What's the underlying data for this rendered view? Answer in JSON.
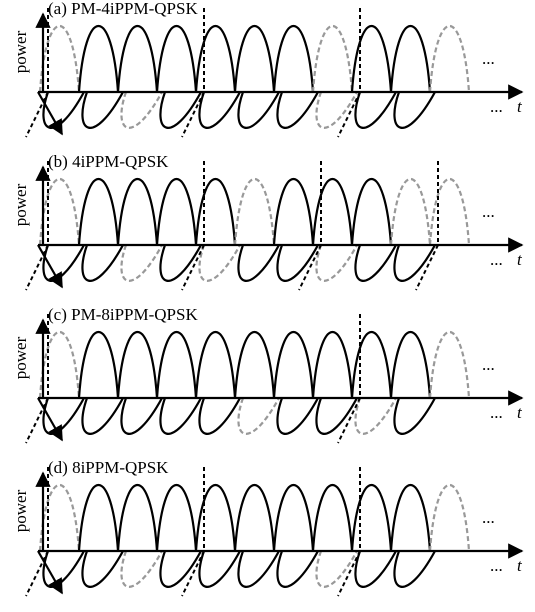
{
  "panels": [
    {
      "title": "(a) PM-4iPPM-QPSK",
      "y_label": "power",
      "x_label": "t",
      "ellipsis_upper": "...",
      "ellipsis_lower": "..."
    },
    {
      "title": "(b) 4iPPM-QPSK",
      "y_label": "power",
      "x_label": "t",
      "ellipsis_upper": "...",
      "ellipsis_lower": "..."
    },
    {
      "title": "(c) PM-8iPPM-QPSK",
      "y_label": "power",
      "x_label": "t",
      "ellipsis_upper": "...",
      "ellipsis_lower": "..."
    },
    {
      "title": "(d) 8iPPM-QPSK",
      "y_label": "power",
      "x_label": "t",
      "ellipsis_upper": "...",
      "ellipsis_lower": "..."
    }
  ]
}
